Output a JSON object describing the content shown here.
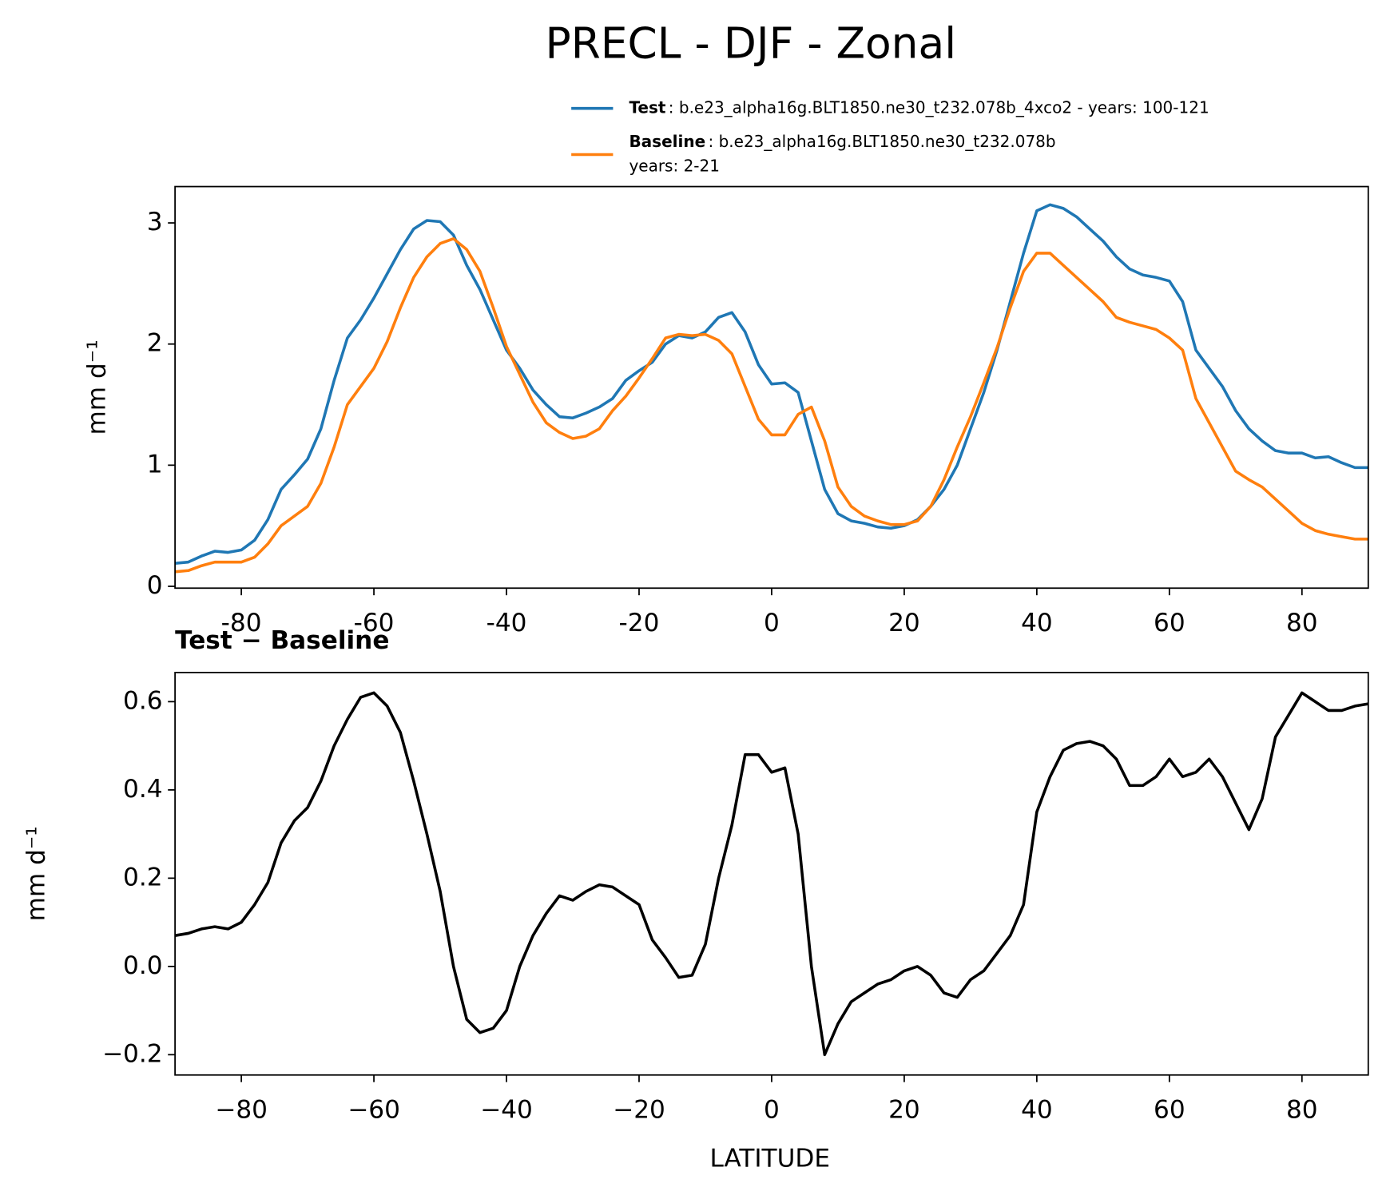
{
  "chart_data": [
    {
      "type": "line",
      "title": "PRECL - DJF - Zonal",
      "ylabel": "mm d⁻¹",
      "x": [
        -90,
        -88,
        -86,
        -84,
        -82,
        -80,
        -78,
        -76,
        -74,
        -72,
        -70,
        -68,
        -66,
        -64,
        -62,
        -60,
        -58,
        -56,
        -54,
        -52,
        -50,
        -48,
        -46,
        -44,
        -42,
        -40,
        -38,
        -36,
        -34,
        -32,
        -30,
        -28,
        -26,
        -24,
        -22,
        -20,
        -18,
        -16,
        -14,
        -12,
        -10,
        -8,
        -6,
        -4,
        -2,
        0,
        2,
        4,
        6,
        8,
        10,
        12,
        14,
        16,
        18,
        20,
        22,
        24,
        26,
        28,
        30,
        32,
        34,
        36,
        38,
        40,
        42,
        44,
        46,
        48,
        50,
        52,
        54,
        56,
        58,
        60,
        62,
        64,
        66,
        68,
        70,
        72,
        74,
        76,
        78,
        80,
        82,
        84,
        86,
        88,
        90
      ],
      "xlim": [
        -90,
        90
      ],
      "xticks": [
        -80,
        -60,
        -40,
        -20,
        0,
        20,
        40,
        60,
        80
      ],
      "ylim": [
        -0.015,
        3.3
      ],
      "yticks": [
        0,
        1,
        2,
        3
      ],
      "series": [
        {
          "name": "Test",
          "label": [
            ": b.e23_alpha16g.BLT1850.ne30_t232.078b_4xco2 - years: 100-121"
          ],
          "color": "#1f77b4",
          "values": [
            0.19,
            0.2,
            0.25,
            0.29,
            0.28,
            0.3,
            0.38,
            0.55,
            0.8,
            0.92,
            1.05,
            1.3,
            1.7,
            2.05,
            2.2,
            2.38,
            2.58,
            2.78,
            2.95,
            3.02,
            3.01,
            2.9,
            2.65,
            2.45,
            2.2,
            1.95,
            1.8,
            1.62,
            1.5,
            1.4,
            1.39,
            1.43,
            1.48,
            1.55,
            1.7,
            1.78,
            1.85,
            2.0,
            2.07,
            2.05,
            2.1,
            2.22,
            2.26,
            2.1,
            1.83,
            1.67,
            1.68,
            1.6,
            1.2,
            0.8,
            0.6,
            0.54,
            0.52,
            0.49,
            0.48,
            0.5,
            0.55,
            0.66,
            0.8,
            1.0,
            1.3,
            1.6,
            1.95,
            2.35,
            2.75,
            3.1,
            3.15,
            3.12,
            3.05,
            2.95,
            2.85,
            2.72,
            2.62,
            2.57,
            2.55,
            2.52,
            2.35,
            1.95,
            1.8,
            1.65,
            1.45,
            1.3,
            1.2,
            1.12,
            1.1,
            1.1,
            1.06,
            1.07,
            1.02,
            0.98,
            0.98
          ]
        },
        {
          "name": "Baseline",
          "label": [
            ": b.e23_alpha16g.BLT1850.ne30_t232.078b",
            "years: 2-21"
          ],
          "color": "#ff7f0e",
          "values": [
            0.12,
            0.13,
            0.17,
            0.2,
            0.2,
            0.2,
            0.24,
            0.35,
            0.5,
            0.58,
            0.66,
            0.85,
            1.15,
            1.5,
            1.65,
            1.8,
            2.02,
            2.3,
            2.55,
            2.72,
            2.83,
            2.87,
            2.78,
            2.6,
            2.3,
            1.98,
            1.75,
            1.52,
            1.35,
            1.27,
            1.22,
            1.24,
            1.3,
            1.45,
            1.57,
            1.72,
            1.88,
            2.05,
            2.08,
            2.07,
            2.08,
            2.03,
            1.92,
            1.65,
            1.38,
            1.25,
            1.25,
            1.42,
            1.48,
            1.2,
            0.82,
            0.66,
            0.58,
            0.54,
            0.51,
            0.51,
            0.54,
            0.66,
            0.88,
            1.15,
            1.4,
            1.68,
            1.97,
            2.3,
            2.6,
            2.75,
            2.75,
            2.65,
            2.55,
            2.45,
            2.35,
            2.22,
            2.18,
            2.15,
            2.12,
            2.05,
            1.95,
            1.55,
            1.35,
            1.15,
            0.95,
            0.88,
            0.82,
            0.72,
            0.62,
            0.52,
            0.46,
            0.43,
            0.41,
            0.39,
            0.39
          ]
        }
      ]
    },
    {
      "type": "line",
      "title": "Test − Baseline",
      "ylabel": "mm d⁻¹",
      "xlabel": "LATITUDE",
      "x": [
        -90,
        -88,
        -86,
        -84,
        -82,
        -80,
        -78,
        -76,
        -74,
        -72,
        -70,
        -68,
        -66,
        -64,
        -62,
        -60,
        -58,
        -56,
        -54,
        -52,
        -50,
        -48,
        -46,
        -44,
        -42,
        -40,
        -38,
        -36,
        -34,
        -32,
        -30,
        -28,
        -26,
        -24,
        -22,
        -20,
        -18,
        -16,
        -14,
        -12,
        -10,
        -8,
        -6,
        -4,
        -2,
        0,
        2,
        4,
        6,
        8,
        10,
        12,
        14,
        16,
        18,
        20,
        22,
        24,
        26,
        28,
        30,
        32,
        34,
        36,
        38,
        40,
        42,
        44,
        46,
        48,
        50,
        52,
        54,
        56,
        58,
        60,
        62,
        64,
        66,
        68,
        70,
        72,
        74,
        76,
        78,
        80,
        82,
        84,
        86,
        88,
        90
      ],
      "xlim": [
        -90,
        90
      ],
      "xticks": [
        {
          "value": -80,
          "label": "−80"
        },
        {
          "value": -60,
          "label": "−60"
        },
        {
          "value": -40,
          "label": "−40"
        },
        {
          "value": -20,
          "label": "−20"
        },
        0,
        20,
        40,
        60,
        80
      ],
      "ylim": [
        -0.246,
        0.666
      ],
      "yticks": [
        {
          "value": -0.2,
          "label": "−0.2"
        },
        {
          "value": 0,
          "label": "0.0"
        },
        0.2,
        0.4,
        0.6
      ],
      "series": [
        {
          "color": "#000000",
          "values": [
            0.07,
            0.075,
            0.085,
            0.09,
            0.085,
            0.1,
            0.14,
            0.19,
            0.28,
            0.33,
            0.36,
            0.42,
            0.5,
            0.56,
            0.61,
            0.62,
            0.59,
            0.53,
            0.42,
            0.3,
            0.17,
            0.0,
            -0.12,
            -0.15,
            -0.14,
            -0.1,
            0.0,
            0.07,
            0.12,
            0.16,
            0.15,
            0.17,
            0.185,
            0.18,
            0.16,
            0.14,
            0.06,
            0.02,
            -0.025,
            -0.02,
            0.05,
            0.2,
            0.32,
            0.48,
            0.48,
            0.44,
            0.45,
            0.3,
            0.0,
            -0.2,
            -0.13,
            -0.08,
            -0.06,
            -0.04,
            -0.03,
            -0.01,
            0.0,
            -0.02,
            -0.06,
            -0.07,
            -0.03,
            -0.01,
            0.03,
            0.07,
            0.14,
            0.35,
            0.43,
            0.49,
            0.505,
            0.51,
            0.5,
            0.47,
            0.41,
            0.41,
            0.43,
            0.47,
            0.43,
            0.44,
            0.47,
            0.43,
            0.37,
            0.31,
            0.38,
            0.52,
            0.57,
            0.62,
            0.6,
            0.58,
            0.58,
            0.59,
            0.595
          ]
        }
      ]
    }
  ]
}
